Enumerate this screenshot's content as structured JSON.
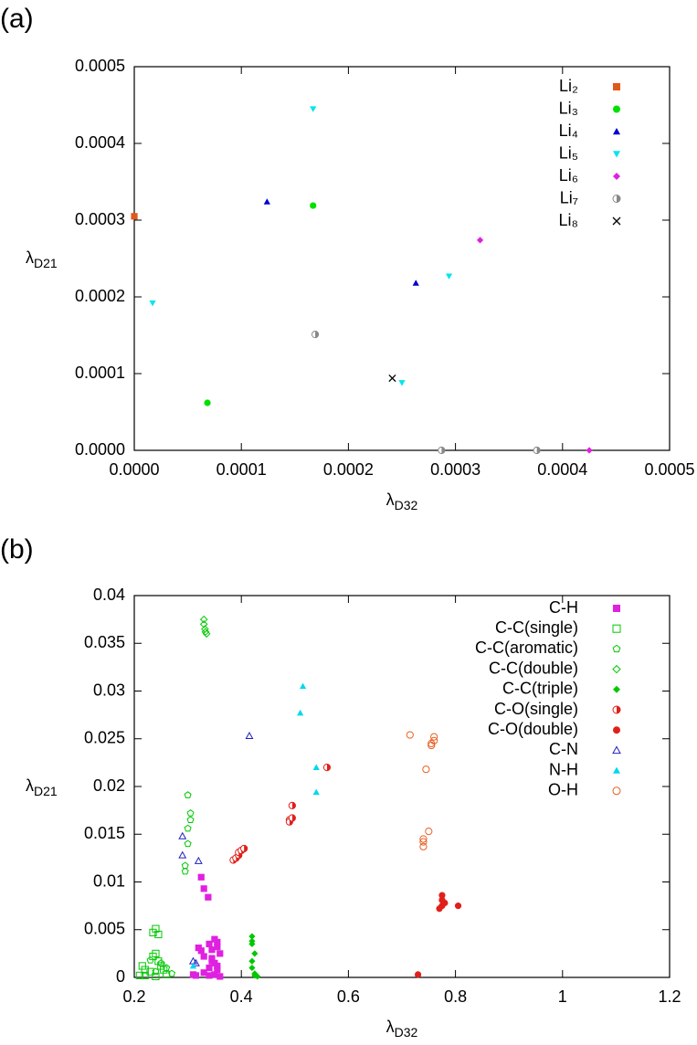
{
  "chart_data": [
    {
      "type": "scatter",
      "panel_label": "(a)",
      "xlabel": [
        "λ",
        "D32"
      ],
      "ylabel": [
        "λ",
        "D21"
      ],
      "xlim": [
        0,
        0.0005
      ],
      "ylim": [
        0,
        0.0005
      ],
      "xticks": [
        {
          "value": 0,
          "label": "0.0000"
        },
        {
          "value": 0.0001,
          "label": "0.0001"
        },
        {
          "value": 0.0002,
          "label": "0.0002"
        },
        {
          "value": 0.0003,
          "label": "0.0003"
        },
        {
          "value": 0.0004,
          "label": "0.0004"
        },
        {
          "value": 0.0005,
          "label": "0.0005"
        }
      ],
      "yticks": [
        {
          "value": 0,
          "label": "0.0000"
        },
        {
          "value": 0.0001,
          "label": "0.0001"
        },
        {
          "value": 0.0002,
          "label": "0.0002"
        },
        {
          "value": 0.0003,
          "label": "0.0003"
        },
        {
          "value": 0.0004,
          "label": "0.0004"
        },
        {
          "value": 0.0005,
          "label": "0.0005"
        }
      ],
      "legend": "top-right",
      "series": [
        {
          "name": "Li₂",
          "color": "#e0581a",
          "marker": "square",
          "x": [
            0
          ],
          "values": [
            0.000305
          ]
        },
        {
          "name": "Li₃",
          "color": "#00e000",
          "marker": "circle",
          "x": [
            0.000167,
            6.83e-05
          ],
          "values": [
            0.000319,
            6.19e-05
          ]
        },
        {
          "name": "Li₄",
          "color": "#0000cc",
          "marker": "triangle",
          "x": [
            0.000124,
            0.000263
          ],
          "values": [
            0.000324,
            0.000218
          ]
        },
        {
          "name": "Li₅",
          "color": "#00e5ee",
          "marker": "triangle-down",
          "x": [
            0.000167,
            1.71e-05,
            0.000294,
            0.00025
          ],
          "values": [
            0.000445,
            0.000192,
            0.000227,
            8.81e-05
          ]
        },
        {
          "name": "Li₆",
          "color": "#e020e0",
          "marker": "diamond",
          "x": [
            0.000323,
            0.000425
          ],
          "values": [
            0.000274,
            0
          ]
        },
        {
          "name": "Li₇",
          "color": "#888888",
          "marker": "half-circle",
          "x": [
            0.000169,
            0.000287,
            0.000376
          ],
          "values": [
            0.000151,
            0,
            0
          ]
        },
        {
          "name": "Li₈",
          "color": "#000000",
          "marker": "cross",
          "x": [
            0.000241
          ],
          "values": [
            9.4e-05
          ]
        }
      ]
    },
    {
      "type": "scatter",
      "panel_label": "(b)",
      "xlabel": [
        "λ",
        "D32"
      ],
      "ylabel": [
        "λ",
        "D21"
      ],
      "xlim": [
        0.2,
        1.2
      ],
      "ylim": [
        0,
        0.04
      ],
      "xticks": [
        0.2,
        0.4,
        0.6,
        0.8,
        1,
        1.2
      ],
      "yticks": [
        0,
        0.005,
        0.01,
        0.015,
        0.02,
        0.025,
        0.03,
        0.035,
        0.04
      ],
      "legend": "top-right",
      "series": [
        {
          "name": "C-H",
          "color": "#e020e0",
          "marker": "square",
          "x": [
            0.325,
            0.33,
            0.338,
            0.32,
            0.325,
            0.33,
            0.34,
            0.345,
            0.35,
            0.355,
            0.355,
            0.36,
            0.345,
            0.35,
            0.34,
            0.355,
            0.35,
            0.34,
            0.36,
            0.33,
            0.31,
            0.315,
            0.355,
            0.345
          ],
          "values": [
            0.0105,
            0.0093,
            0.0084,
            0.0031,
            0.0028,
            0.0022,
            0.0035,
            0.0029,
            0.004,
            0.0037,
            0.0032,
            0.0025,
            0.002,
            0.0015,
            0.001,
            0.0008,
            0.0003,
            0.0002,
            0.0001,
            0.0005,
            0.0003,
            0.0002,
            0.0012,
            0.0017
          ]
        },
        {
          "name": "C-C(single)",
          "color": "#00c800",
          "marker": "square-open",
          "x": [
            0.235,
            0.24,
            0.245,
            0.24,
            0.235,
            0.245,
            0.25,
            0.215,
            0.22,
            0.23,
            0.255,
            0.26,
            0.21,
            0.24,
            0.22
          ],
          "values": [
            0.0047,
            0.0051,
            0.0045,
            0.0025,
            0.0022,
            0.0017,
            0.0012,
            0.0012,
            0.0008,
            0.0006,
            0.0008,
            0.0003,
            0.0002,
            0.0001,
            0.0002
          ]
        },
        {
          "name": "C-C(aromatic)",
          "color": "#00c800",
          "marker": "pentagon-open",
          "x": [
            0.3,
            0.305,
            0.305,
            0.3,
            0.3,
            0.295,
            0.295,
            0.23,
            0.25,
            0.26,
            0.24,
            0.27
          ],
          "values": [
            0.0191,
            0.0172,
            0.0165,
            0.0156,
            0.014,
            0.0117,
            0.0111,
            0.0018,
            0.0015,
            0.001,
            0.0006,
            0.0004
          ]
        },
        {
          "name": "C-C(double)",
          "color": "#00c800",
          "marker": "diamond-open",
          "x": [
            0.33,
            0.33,
            0.332,
            0.335,
            0.333
          ],
          "values": [
            0.0375,
            0.037,
            0.0365,
            0.036,
            0.0362
          ]
        },
        {
          "name": "C-C(triple)",
          "color": "#00c800",
          "marker": "diamond",
          "x": [
            0.42,
            0.42,
            0.42,
            0.425,
            0.42,
            0.42,
            0.425,
            0.43,
            0.425
          ],
          "values": [
            0.0043,
            0.0038,
            0.0035,
            0.0025,
            0.0017,
            0.001,
            0.0004,
            0.0001,
            0.0002
          ]
        },
        {
          "name": "C-O(single)",
          "color": "#e0201a",
          "marker": "half-circle",
          "x": [
            0.385,
            0.39,
            0.395,
            0.395,
            0.4,
            0.405,
            0.49,
            0.49,
            0.495,
            0.495,
            0.56
          ],
          "values": [
            0.0123,
            0.0125,
            0.0128,
            0.0131,
            0.0133,
            0.0135,
            0.0165,
            0.0163,
            0.0167,
            0.018,
            0.022
          ]
        },
        {
          "name": "C-O(double)",
          "color": "#e0201a",
          "marker": "circle",
          "x": [
            0.73,
            0.77,
            0.775,
            0.775,
            0.775,
            0.78,
            0.805
          ],
          "values": [
            0.0003,
            0.0072,
            0.0075,
            0.0081,
            0.0086,
            0.0078,
            0.0075
          ]
        },
        {
          "name": "C-N",
          "color": "#2020c0",
          "marker": "triangle-open",
          "x": [
            0.29,
            0.29,
            0.32,
            0.415,
            0.31,
            0.315
          ],
          "values": [
            0.0148,
            0.0128,
            0.0122,
            0.0253,
            0.0017,
            0.0015
          ]
        },
        {
          "name": "N-H",
          "color": "#00d8ee",
          "marker": "triangle",
          "x": [
            0.515,
            0.51,
            0.54,
            0.54,
            0.31
          ],
          "values": [
            0.0305,
            0.0277,
            0.022,
            0.0194,
            0.0012
          ]
        },
        {
          "name": "O-H",
          "color": "#e86020",
          "marker": "circle-open",
          "x": [
            0.715,
            0.76,
            0.76,
            0.755,
            0.755,
            0.745,
            0.75,
            0.74,
            0.74,
            0.74
          ],
          "values": [
            0.0254,
            0.0252,
            0.0248,
            0.0245,
            0.0243,
            0.0218,
            0.0153,
            0.0145,
            0.0142,
            0.0137
          ]
        }
      ]
    }
  ]
}
